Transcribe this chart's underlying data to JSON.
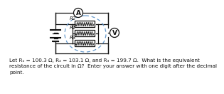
{
  "bg_color": "#ffffff",
  "circuit_color": "#111111",
  "dashed_ellipse_color": "#6699cc",
  "resistor_color": "#111111",
  "text_color": "#111111",
  "label_R1": "R1",
  "label_R2": "R2",
  "label_R3": "R3",
  "label_A": "A",
  "label_V": "V",
  "footer_text": "Let R₁ = 100.3 Ω, R₂ = 103.1 Ω, and R₃ = 199.7 Ω.  What is the equivalent\nresistance of the circuit in Ω?  Enter your answer with one digit after the decimal\npoint.",
  "footer_fontsize": 5.2,
  "label_fontsize": 6.5,
  "res_label_fontsize": 5.0
}
